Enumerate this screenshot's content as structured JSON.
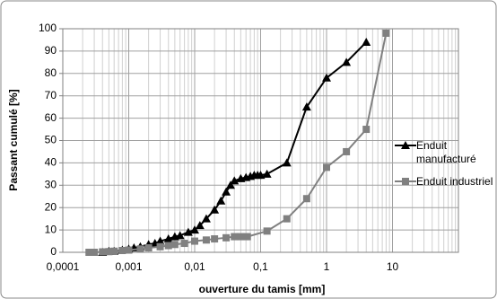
{
  "chart_data": {
    "type": "line",
    "xlabel": "ouverture du tamis [mm]",
    "ylabel": "Passant cumulé [%]",
    "xscale": "log",
    "xlim": [
      0.0001,
      100
    ],
    "xticks": [
      {
        "value": 0.0001,
        "label": "0,0001"
      },
      {
        "value": 0.001,
        "label": "0,001"
      },
      {
        "value": 0.01,
        "label": "0,01"
      },
      {
        "value": 0.1,
        "label": "0,1"
      },
      1,
      10
    ],
    "ylim": [
      0,
      100
    ],
    "yticks": [
      0,
      10,
      20,
      30,
      40,
      50,
      60,
      70,
      80,
      90,
      100
    ],
    "grid": true,
    "legend": "right",
    "series": [
      {
        "name": "Enduit manufacturé",
        "color": "#000000",
        "marker": "triangle",
        "x": [
          0.0004,
          0.0005,
          0.0006,
          0.0008,
          0.001,
          0.0012,
          0.0015,
          0.002,
          0.0025,
          0.003,
          0.004,
          0.005,
          0.006,
          0.008,
          0.01,
          0.012,
          0.015,
          0.02,
          0.025,
          0.03,
          0.035,
          0.04,
          0.05,
          0.06,
          0.07,
          0.08,
          0.09,
          0.1,
          0.125,
          0.25,
          0.5,
          1,
          2,
          4
        ],
        "values": [
          0,
          0.5,
          0.5,
          1,
          1.5,
          2,
          2.5,
          3.5,
          4,
          5,
          6,
          7,
          7.5,
          9,
          10,
          12,
          15,
          19,
          23,
          27,
          30,
          32,
          33,
          33.5,
          34,
          34.5,
          34.5,
          34.5,
          35,
          40,
          65,
          78,
          85,
          94
        ]
      },
      {
        "name": "Enduit industriel",
        "color": "#808080",
        "marker": "square",
        "x": [
          0.00025,
          0.0003,
          0.0004,
          0.0005,
          0.0006,
          0.0008,
          0.001,
          0.0015,
          0.002,
          0.003,
          0.004,
          0.005,
          0.007,
          0.01,
          0.015,
          0.02,
          0.03,
          0.04,
          0.05,
          0.063,
          0.125,
          0.25,
          0.5,
          1,
          2,
          4,
          8
        ],
        "values": [
          0,
          0,
          0.2,
          0.3,
          0.5,
          0.8,
          1,
          1.5,
          2,
          2.5,
          3,
          3.5,
          4,
          5,
          5.5,
          6,
          6.5,
          7,
          7,
          7,
          9.5,
          15,
          24,
          38,
          45,
          55,
          98
        ]
      }
    ]
  }
}
